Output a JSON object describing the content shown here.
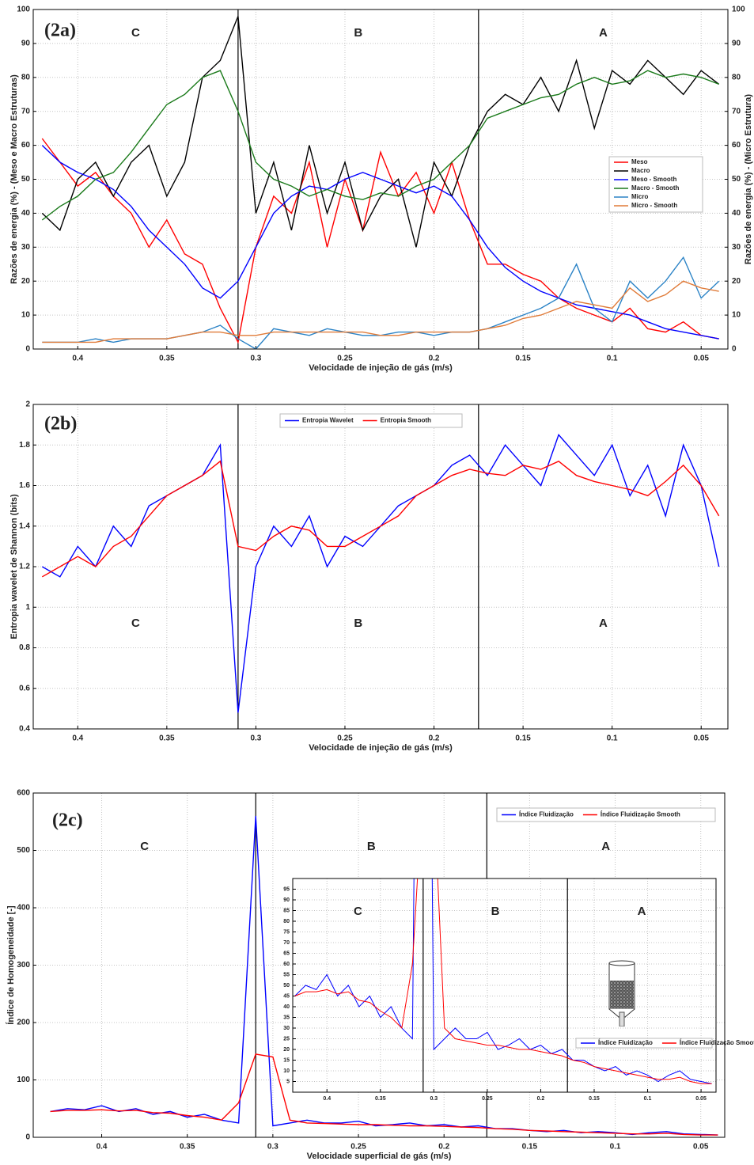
{
  "chart_data": [
    {
      "type": "line",
      "panel_label": "(2a)",
      "xlabel": "Velocidade de injeção de gás (m/s)",
      "ylabel": "Razões de energia (%) - (Meso e Macro Estruturas)",
      "y2label": "Razões de energia (%) - (Micro Estrutura)",
      "xlim": [
        0.425,
        0.035
      ],
      "xticks": [
        0.4,
        0.35,
        0.3,
        0.25,
        0.2,
        0.15,
        0.1,
        0.05
      ],
      "ylim": [
        0,
        100
      ],
      "yticks": [
        0,
        10,
        20,
        30,
        40,
        50,
        60,
        70,
        80,
        90,
        100
      ],
      "y2lim": [
        0,
        100
      ],
      "y2ticks": [
        0,
        10,
        20,
        30,
        40,
        50,
        60,
        70,
        80,
        90,
        100
      ],
      "grid": true,
      "legend": "right",
      "boundaries": [
        0.31,
        0.175
      ],
      "regions": [
        "C",
        "B",
        "A"
      ],
      "x": [
        0.42,
        0.41,
        0.4,
        0.39,
        0.38,
        0.37,
        0.36,
        0.35,
        0.34,
        0.33,
        0.32,
        0.31,
        0.3,
        0.29,
        0.28,
        0.27,
        0.26,
        0.25,
        0.24,
        0.23,
        0.22,
        0.21,
        0.2,
        0.19,
        0.18,
        0.17,
        0.16,
        0.15,
        0.14,
        0.13,
        0.12,
        0.11,
        0.1,
        0.09,
        0.08,
        0.07,
        0.06,
        0.05,
        0.04
      ],
      "series": [
        {
          "name": "Meso",
          "color": "#ff0000",
          "values": [
            62,
            55,
            48,
            52,
            45,
            40,
            30,
            38,
            28,
            25,
            12,
            2,
            30,
            45,
            40,
            55,
            30,
            50,
            35,
            58,
            45,
            52,
            40,
            55,
            38,
            25,
            25,
            22,
            20,
            15,
            12,
            10,
            8,
            12,
            6,
            5,
            8,
            4,
            3
          ]
        },
        {
          "name": "Macro",
          "color": "#000000",
          "values": [
            40,
            35,
            50,
            55,
            45,
            55,
            60,
            45,
            55,
            80,
            85,
            98,
            40,
            55,
            35,
            60,
            40,
            55,
            35,
            45,
            50,
            30,
            55,
            45,
            60,
            70,
            75,
            72,
            80,
            70,
            85,
            65,
            82,
            78,
            85,
            80,
            75,
            82,
            78
          ]
        },
        {
          "name": "Meso - Smooth",
          "color": "#0000ff",
          "values": [
            60,
            55,
            52,
            50,
            47,
            42,
            35,
            30,
            25,
            18,
            15,
            20,
            30,
            40,
            45,
            48,
            47,
            50,
            52,
            50,
            48,
            46,
            48,
            45,
            38,
            30,
            24,
            20,
            17,
            15,
            13,
            12,
            11,
            10,
            8,
            6,
            5,
            4,
            3
          ]
        },
        {
          "name": "Macro - Smooth",
          "color": "#1a7a1a",
          "values": [
            38,
            42,
            45,
            50,
            52,
            58,
            65,
            72,
            75,
            80,
            82,
            70,
            55,
            50,
            48,
            45,
            47,
            45,
            44,
            46,
            45,
            48,
            50,
            55,
            60,
            68,
            70,
            72,
            74,
            75,
            78,
            80,
            78,
            79,
            82,
            80,
            81,
            80,
            78
          ]
        },
        {
          "name": "Micro",
          "color": "#2b83c6",
          "axis": "y2",
          "values": [
            2,
            2,
            2,
            3,
            2,
            3,
            3,
            3,
            4,
            5,
            7,
            3,
            0,
            6,
            5,
            4,
            6,
            5,
            4,
            4,
            5,
            5,
            4,
            5,
            5,
            6,
            8,
            10,
            12,
            15,
            25,
            12,
            8,
            20,
            15,
            20,
            27,
            15,
            20
          ]
        },
        {
          "name": "Micro - Smooth",
          "color": "#e07b39",
          "axis": "y2",
          "values": [
            2,
            2,
            2,
            2,
            3,
            3,
            3,
            3,
            4,
            5,
            5,
            4,
            4,
            5,
            5,
            5,
            5,
            5,
            5,
            4,
            4,
            5,
            5,
            5,
            5,
            6,
            7,
            9,
            10,
            12,
            14,
            13,
            12,
            18,
            14,
            16,
            20,
            18,
            17
          ]
        }
      ]
    },
    {
      "type": "line",
      "panel_label": "(2b)",
      "xlabel": "Velocidade de injeção de gás (m/s)",
      "ylabel": "Entropia wavelet de Shannon (bits)",
      "xlim": [
        0.425,
        0.035
      ],
      "xticks": [
        0.4,
        0.35,
        0.3,
        0.25,
        0.2,
        0.15,
        0.1,
        0.05
      ],
      "ylim": [
        0.4,
        2
      ],
      "yticks": [
        0.4,
        0.6,
        0.8,
        1,
        1.2,
        1.4,
        1.6,
        1.8,
        2
      ],
      "grid": true,
      "legend": "upper center",
      "boundaries": [
        0.31,
        0.175
      ],
      "regions": [
        "C",
        "B",
        "A"
      ],
      "x": [
        0.42,
        0.41,
        0.4,
        0.39,
        0.38,
        0.37,
        0.36,
        0.35,
        0.34,
        0.33,
        0.32,
        0.31,
        0.3,
        0.29,
        0.28,
        0.27,
        0.26,
        0.25,
        0.24,
        0.23,
        0.22,
        0.21,
        0.2,
        0.19,
        0.18,
        0.17,
        0.16,
        0.15,
        0.14,
        0.13,
        0.12,
        0.11,
        0.1,
        0.09,
        0.08,
        0.07,
        0.06,
        0.05,
        0.04
      ],
      "series": [
        {
          "name": "Entropia Wavelet",
          "color": "#0000ff",
          "values": [
            1.2,
            1.15,
            1.3,
            1.2,
            1.4,
            1.3,
            1.5,
            1.55,
            1.6,
            1.65,
            1.8,
            0.48,
            1.2,
            1.4,
            1.3,
            1.45,
            1.2,
            1.35,
            1.3,
            1.4,
            1.5,
            1.55,
            1.6,
            1.7,
            1.75,
            1.65,
            1.8,
            1.7,
            1.6,
            1.85,
            1.75,
            1.65,
            1.8,
            1.55,
            1.7,
            1.45,
            1.8,
            1.6,
            1.2
          ]
        },
        {
          "name": "Entropia Smooth",
          "color": "#ff0000",
          "values": [
            1.15,
            1.2,
            1.25,
            1.2,
            1.3,
            1.35,
            1.45,
            1.55,
            1.6,
            1.65,
            1.72,
            1.3,
            1.28,
            1.35,
            1.4,
            1.38,
            1.3,
            1.3,
            1.35,
            1.4,
            1.45,
            1.55,
            1.6,
            1.65,
            1.68,
            1.66,
            1.65,
            1.7,
            1.68,
            1.72,
            1.65,
            1.62,
            1.6,
            1.58,
            1.55,
            1.62,
            1.7,
            1.6,
            1.45
          ]
        }
      ]
    },
    {
      "type": "line",
      "panel_label": "(2c)",
      "xlabel": "Velocidade superficial de gás (m/s)",
      "ylabel": "Índice de Homogeneidade [-]",
      "xlim": [
        0.44,
        0.036
      ],
      "xticks": [
        0.4,
        0.35,
        0.3,
        0.25,
        0.2,
        0.15,
        0.1,
        0.05
      ],
      "ylim": [
        0,
        600
      ],
      "yticks": [
        0,
        100,
        200,
        300,
        400,
        500,
        600
      ],
      "grid": true,
      "legend": "upper right",
      "boundaries": [
        0.31,
        0.175
      ],
      "regions": [
        "C",
        "B",
        "A"
      ],
      "x": [
        0.43,
        0.42,
        0.41,
        0.4,
        0.39,
        0.38,
        0.37,
        0.36,
        0.35,
        0.34,
        0.33,
        0.32,
        0.31,
        0.3,
        0.29,
        0.28,
        0.27,
        0.26,
        0.25,
        0.24,
        0.23,
        0.22,
        0.21,
        0.2,
        0.19,
        0.18,
        0.17,
        0.16,
        0.15,
        0.14,
        0.13,
        0.12,
        0.11,
        0.1,
        0.09,
        0.08,
        0.07,
        0.06,
        0.05,
        0.04
      ],
      "series": [
        {
          "name": "Índice Fluidização",
          "color": "#0000ff",
          "values": [
            45,
            50,
            48,
            55,
            45,
            50,
            40,
            45,
            35,
            40,
            30,
            25,
            560,
            20,
            25,
            30,
            25,
            25,
            28,
            20,
            22,
            25,
            20,
            22,
            18,
            20,
            15,
            15,
            12,
            10,
            12,
            8,
            10,
            8,
            5,
            8,
            10,
            6,
            5,
            4
          ]
        },
        {
          "name": "Índice Fluidização Smooth",
          "color": "#ff0000",
          "values": [
            45,
            47,
            47,
            48,
            46,
            47,
            43,
            42,
            38,
            35,
            30,
            60,
            145,
            140,
            30,
            25,
            24,
            23,
            22,
            22,
            21,
            20,
            20,
            19,
            18,
            17,
            15,
            14,
            12,
            11,
            10,
            9,
            8,
            7,
            6,
            6,
            7,
            5,
            4,
            4
          ]
        }
      ],
      "inset": {
        "xlim": [
          0.432,
          0.036
        ],
        "xticks": [
          0.4,
          0.35,
          0.3,
          0.25,
          0.2,
          0.15,
          0.1,
          0.05
        ],
        "ylim": [
          0,
          100
        ],
        "yticks": [
          5,
          10,
          15,
          20,
          25,
          30,
          35,
          40,
          45,
          50,
          55,
          60,
          65,
          70,
          75,
          80,
          85,
          90,
          95
        ],
        "grid": true
      }
    }
  ]
}
